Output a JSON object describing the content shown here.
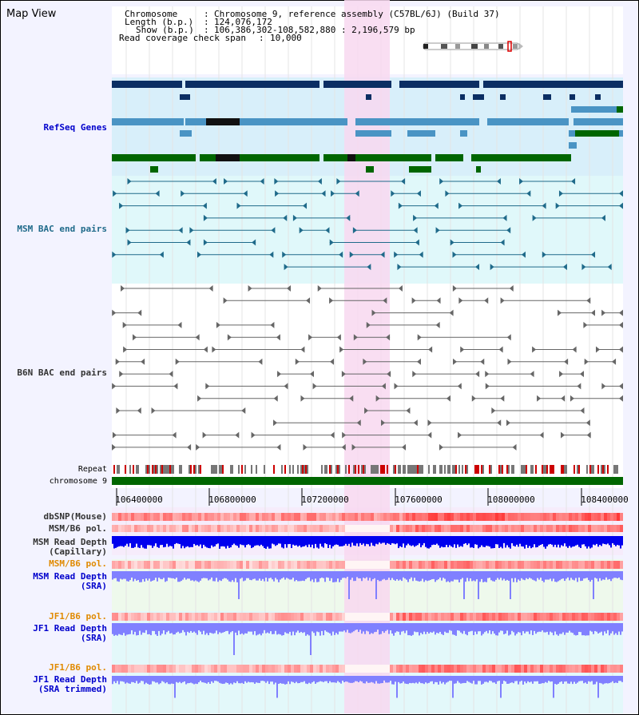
{
  "title": "Map View",
  "info": {
    "chromosome_key": "Chromosome",
    "chromosome_value": "Chromosome 9, reference assembly (C57BL/6J) (Build 37)",
    "length_key": "Length (b.p.)",
    "length_value": "124,076,172",
    "show_key": "Show (b.p.)",
    "show_value": "106,386,302-108,582,880 : 2,196,579 bp",
    "coverage_key": "Read coverage check span",
    "coverage_value": "10,000"
  },
  "tracks": {
    "refseq": "RefSeq Genes",
    "msm_bac": "MSM BAC end pairs",
    "b6n_bac": "B6N BAC end pairs",
    "repeat": "Repeat",
    "chromosome": "chromosome 9",
    "dbsnp": "dbSNP(Mouse)",
    "msm_b6_pol": "MSM/B6 pol.",
    "msm_read_cap_1": "MSM Read Depth",
    "msm_read_cap_2": "(Capillary)",
    "msm_b6_pol_sra": "MSM/B6 pol.",
    "msm_read_sra_1": "MSM Read Depth",
    "msm_read_sra_2": "(SRA)",
    "jf1_b6_pol_1": "JF1/B6 pol.",
    "jf1_read_sra_1": "JF1 Read Depth",
    "jf1_read_sra_2": "(SRA)",
    "jf1_b6_pol_2": "JF1/B6 pol.",
    "jf1_read_trim_1": "JF1 Read Depth",
    "jf1_read_trim_2": "(SRA trimmed)"
  },
  "axis": {
    "ticks": [
      "106400000",
      "106800000",
      "107200000",
      "107600000",
      "108000000",
      "108400000"
    ]
  },
  "colors": {
    "refseq_dark": "#0b2e63",
    "refseq_mid": "#4a94c4",
    "refseq_green": "#006600",
    "msm_bac": "#1f6a8a",
    "b6n_bac": "#666666",
    "highlight": "#f8d8f0",
    "chromosome_bar": "#006600",
    "depth_capillary": "#0000ee",
    "depth_sra": "#8080ff"
  }
}
